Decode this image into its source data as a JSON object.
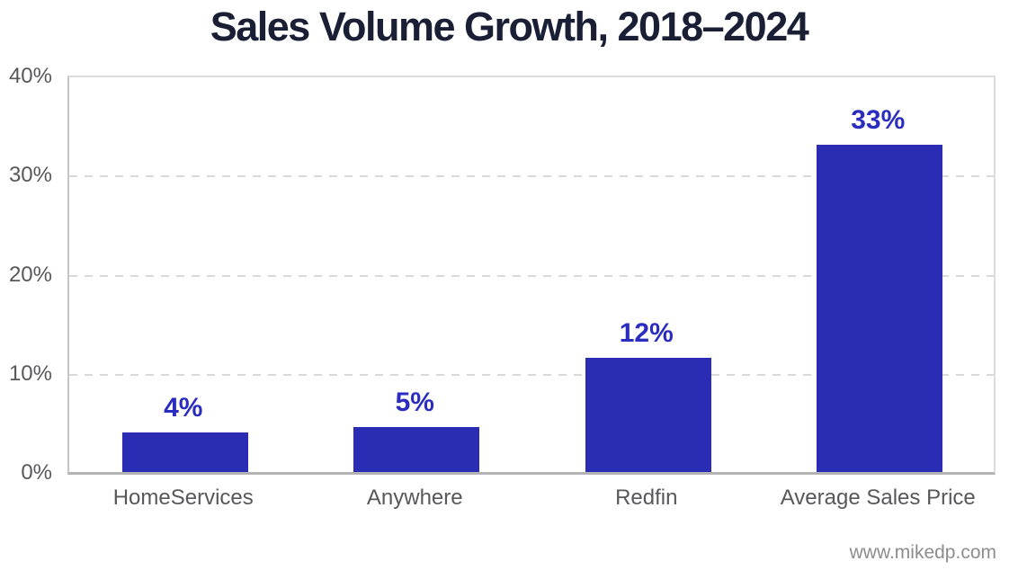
{
  "page": {
    "watermark": "www.mikedp.com"
  },
  "chart_data": {
    "type": "bar",
    "title": "Sales Volume Growth, 2018–2024",
    "categories": [
      "HomeServices",
      "Anywhere",
      "Redfin",
      "Average Sales Price"
    ],
    "values": [
      4,
      5,
      12,
      33
    ],
    "value_labels": [
      "4%",
      "5%",
      "12%",
      "33%"
    ],
    "plotted_values": [
      4,
      4.5,
      11.5,
      33
    ],
    "xlabel": "",
    "ylabel": "",
    "ylim": [
      0,
      40
    ],
    "yticks": [
      0,
      10,
      20,
      30,
      40
    ],
    "ytick_labels": [
      "0%",
      "10%",
      "20%",
      "30%",
      "40%"
    ],
    "grid": "horizontal dashed lines at 10, 20, 30",
    "legend": "none",
    "colors": {
      "bar": "#2a2db4",
      "value_label": "#2b2dc0",
      "title": "#1a1f36",
      "axis_text": "#58585b",
      "gridline": "#d9d9d9",
      "axis_line_bottom": "#b3b3b3",
      "axis_frame": "#dcdcdc",
      "watermark": "#8d8d8d",
      "background": "#ffffff"
    }
  }
}
